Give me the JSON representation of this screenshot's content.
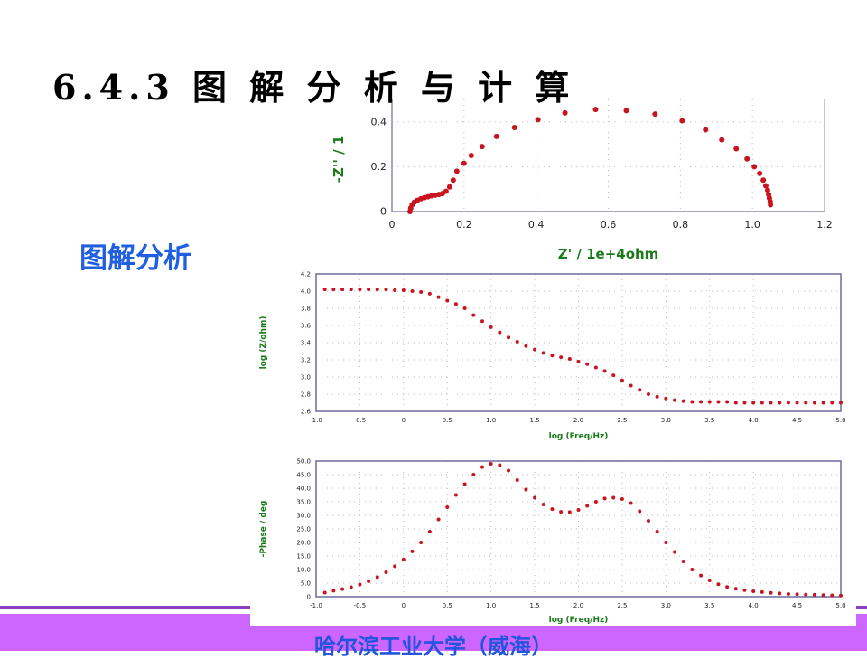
{
  "slide": {
    "title": "6.4.3 图 解 分 析 与 计 算",
    "subtitle": "图解分析",
    "footer": "哈尔滨工业大学（威海）",
    "colors": {
      "marker": "#c8141e",
      "axis_label": "#1a7a1a",
      "subtitle": "#1f5fe0",
      "footer_band": "#cc66ff",
      "footer_line": "#8c3fc0"
    }
  },
  "chart_data": [
    {
      "type": "scatter",
      "xlabel": "Z' / 1e+4ohm",
      "ylabel": "-Z'' / 1",
      "xlim": [
        0,
        1.2
      ],
      "ylim": [
        0,
        0.5
      ],
      "xticks": [
        "0",
        "0.2",
        "0.4",
        "0.6",
        "0.8",
        "1.0",
        "1.2"
      ],
      "yticks": [
        "0",
        "0.2",
        "0.4"
      ],
      "grid": true,
      "points": [
        [
          0.05,
          0
        ],
        [
          0.052,
          0.015
        ],
        [
          0.056,
          0.03
        ],
        [
          0.062,
          0.042
        ],
        [
          0.07,
          0.05
        ],
        [
          0.08,
          0.057
        ],
        [
          0.09,
          0.062
        ],
        [
          0.1,
          0.066
        ],
        [
          0.11,
          0.07
        ],
        [
          0.12,
          0.073
        ],
        [
          0.13,
          0.076
        ],
        [
          0.14,
          0.08
        ],
        [
          0.15,
          0.09
        ],
        [
          0.16,
          0.11
        ],
        [
          0.17,
          0.14
        ],
        [
          0.18,
          0.18
        ],
        [
          0.2,
          0.215
        ],
        [
          0.22,
          0.25
        ],
        [
          0.25,
          0.29
        ],
        [
          0.29,
          0.335
        ],
        [
          0.34,
          0.375
        ],
        [
          0.405,
          0.41
        ],
        [
          0.48,
          0.44
        ],
        [
          0.565,
          0.455
        ],
        [
          0.65,
          0.45
        ],
        [
          0.73,
          0.435
        ],
        [
          0.805,
          0.405
        ],
        [
          0.87,
          0.365
        ],
        [
          0.915,
          0.32
        ],
        [
          0.955,
          0.28
        ],
        [
          0.985,
          0.235
        ],
        [
          1.005,
          0.2
        ],
        [
          1.02,
          0.17
        ],
        [
          1.03,
          0.14
        ],
        [
          1.037,
          0.115
        ],
        [
          1.042,
          0.095
        ],
        [
          1.045,
          0.075
        ],
        [
          1.047,
          0.06
        ],
        [
          1.049,
          0.045
        ],
        [
          1.05,
          0.03
        ]
      ]
    },
    {
      "type": "scatter",
      "xlabel": "log (Freq/Hz)",
      "ylabel": "log (Z/ohm)",
      "xlim": [
        -1.0,
        5.0
      ],
      "ylim": [
        2.6,
        4.2
      ],
      "xticks": [
        "-1.0",
        "-0.5",
        "0",
        "0.5",
        "1.0",
        "1.5",
        "2.0",
        "2.5",
        "3.0",
        "3.5",
        "4.0",
        "4.5",
        "5.0"
      ],
      "yticks": [
        "2.6",
        "2.8",
        "3.0",
        "3.2",
        "3.4",
        "3.6",
        "3.8",
        "4.0",
        "4.2"
      ],
      "grid": true,
      "x_start": -0.9,
      "x_step": 0.1,
      "y": [
        4.02,
        4.02,
        4.02,
        4.02,
        4.02,
        4.02,
        4.02,
        4.02,
        4.01,
        4.01,
        4.0,
        3.99,
        3.97,
        3.93,
        3.89,
        3.85,
        3.8,
        3.72,
        3.65,
        3.58,
        3.52,
        3.46,
        3.41,
        3.36,
        3.32,
        3.28,
        3.25,
        3.23,
        3.21,
        3.18,
        3.15,
        3.11,
        3.07,
        3.02,
        2.96,
        2.9,
        2.85,
        2.8,
        2.77,
        2.75,
        2.73,
        2.72,
        2.71,
        2.71,
        2.71,
        2.71,
        2.71,
        2.7,
        2.7,
        2.7,
        2.7,
        2.7,
        2.7,
        2.7,
        2.7,
        2.7,
        2.7,
        2.7,
        2.7,
        2.7
      ]
    },
    {
      "type": "scatter",
      "xlabel": "log (Freq/Hz)",
      "ylabel": "-Phase / deg",
      "xlim": [
        -1.0,
        5.0
      ],
      "ylim": [
        0,
        50
      ],
      "xticks": [
        "-1.0",
        "-0.5",
        "0",
        "0.5",
        "1.0",
        "1.5",
        "2.0",
        "2.5",
        "3.0",
        "3.5",
        "4.0",
        "4.5",
        "5.0"
      ],
      "yticks": [
        "0",
        "5.0",
        "10.0",
        "15.0",
        "20.0",
        "25.0",
        "30.0",
        "35.0",
        "40.0",
        "45.0",
        "50.0"
      ],
      "grid": true,
      "x_start": -0.9,
      "x_step": 0.1,
      "y": [
        1.5,
        2.2,
        2.8,
        3.5,
        4.5,
        5.7,
        7.2,
        9,
        11.2,
        13.7,
        16.7,
        20,
        24,
        28.5,
        33,
        37.5,
        41.5,
        45,
        47.8,
        49,
        48.5,
        46.5,
        43,
        39.5,
        36.5,
        34,
        32.3,
        31.3,
        31.2,
        32,
        33.5,
        35,
        36.2,
        36.5,
        36,
        34.5,
        31.5,
        28,
        24,
        20,
        16.5,
        13,
        10,
        7.8,
        6,
        4.6,
        3.6,
        2.9,
        2.4,
        2,
        1.7,
        1.4,
        1.2,
        1,
        0.9,
        0.8,
        0.7,
        0.6,
        0.5,
        0.4
      ]
    }
  ]
}
